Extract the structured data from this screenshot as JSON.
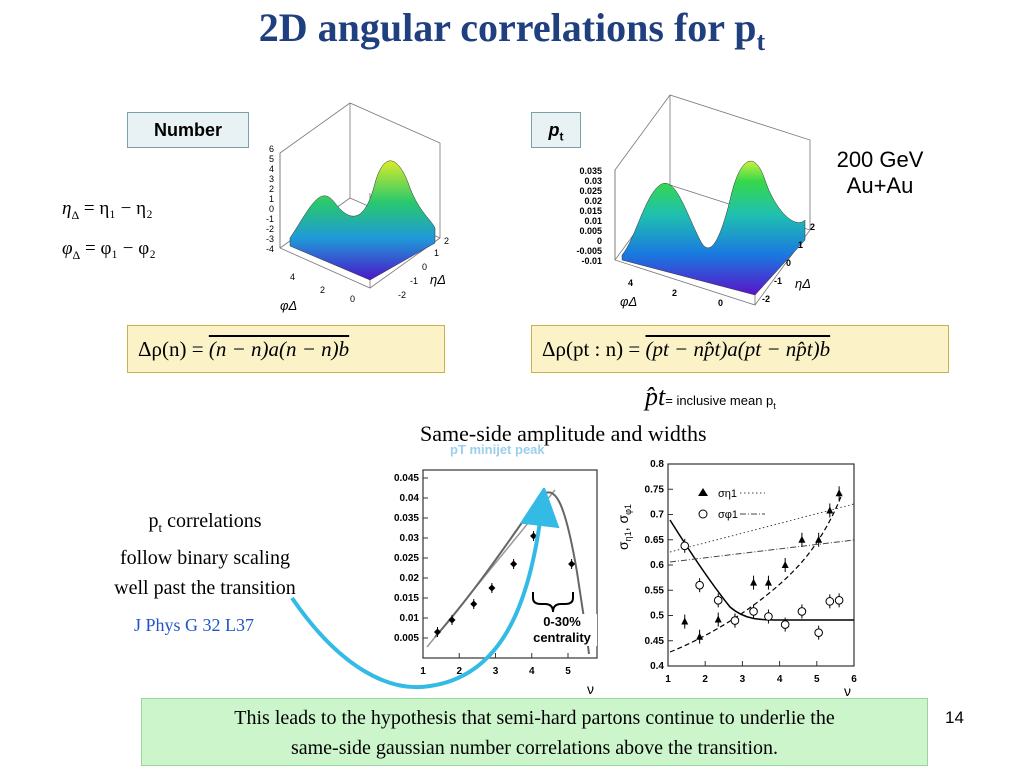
{
  "title": {
    "main": "2D angular correlations for p",
    "sub": "t"
  },
  "panels": {
    "number_label": "Number",
    "pt_label_main": "p",
    "pt_label_sub": "t"
  },
  "definitions": {
    "eta_lhs": "η",
    "eta_sub": "Δ",
    "eta_rhs": " = η₁ − η₂",
    "phi_lhs": "φ",
    "phi_sub": "Δ",
    "phi_rhs": " = φ₁ − φ₂"
  },
  "energy": {
    "line1": "200 GeV",
    "line2": "Au+Au"
  },
  "equations": {
    "number": {
      "lhs": "Δρ(n)",
      "eq": " = ",
      "rhs": "(n − n)a(n − n)b"
    },
    "pt": {
      "lhs": "Δρ(pt : n)",
      "eq": " = ",
      "rhs": "(pt − np̂t)a(pt − np̂t)b"
    }
  },
  "mean_pt": {
    "symbol": "p̂t",
    "text": "= inclusive mean p",
    "sub": "t"
  },
  "surface_axes": {
    "left": {
      "z_ticks": [
        "6",
        "5",
        "4",
        "3",
        "2",
        "1",
        "0",
        "-1",
        "-2",
        "-3",
        "-4"
      ],
      "phi_ticks": [
        "4",
        "2",
        "0"
      ],
      "eta_ticks": [
        "-2",
        "-1",
        "0",
        "1",
        "2"
      ],
      "phi_label": "φΔ",
      "eta_label": "ηΔ"
    },
    "right": {
      "z_ticks": [
        "0.035",
        "0.03",
        "0.025",
        "0.02",
        "0.015",
        "0.01",
        "0.005",
        "0",
        "-0.005",
        "-0.01"
      ],
      "phi_ticks": [
        "4",
        "2",
        "0"
      ],
      "eta_ticks": [
        "-2",
        "-1",
        "0",
        "1",
        "2"
      ],
      "phi_label": "φΔ",
      "eta_label": "ηΔ"
    }
  },
  "section_heading": "Same-side amplitude and widths",
  "left_text": {
    "line1_main": "p",
    "line1_sub": "t",
    "line1_rest": " correlations",
    "line2": "follow binary scaling",
    "line3": "well past the transition",
    "citation": "J Phys G 32 L37"
  },
  "minijet_label": "pT minijet peak",
  "centrality_label": {
    "line1": "0-30%",
    "line2": "centrality"
  },
  "note": {
    "line1": "This leads to the hypothesis that semi-hard partons continue to underlie the",
    "line2": "same-side gaussian number correlations above the transition."
  },
  "page_number": "14",
  "colors": {
    "title": "#1f3f7f",
    "arrow": "#33bbe6",
    "note_bg": "#ccf5cc",
    "eq_bg": "#fbf2c8",
    "label_bg": "#e8f2f5"
  },
  "chart_data": [
    {
      "type": "scatter",
      "x": [
        1.4,
        1.8,
        2.4,
        2.9,
        3.5,
        4.05,
        4.4,
        5.1
      ],
      "y": [
        0.0065,
        0.0095,
        0.0135,
        0.0175,
        0.0235,
        0.0305,
        0.0385,
        0.0235
      ],
      "xticks": [
        "1",
        "2",
        "3",
        "4",
        "5"
      ],
      "yticks": [
        "0.045",
        "0.04",
        "0.035",
        "0.03",
        "0.025",
        "0.02",
        "0.015",
        "0.01",
        "0.005"
      ],
      "xlabel": "ν",
      "xlim": [
        1,
        5.8
      ],
      "ylim": [
        0,
        0.047
      ]
    },
    {
      "type": "scatter",
      "xlabel": "ν",
      "xticks": [
        "1",
        "2",
        "3",
        "4",
        "5",
        "6"
      ],
      "yticks": [
        "0.8",
        "0.75",
        "0.7",
        "0.65",
        "0.6",
        "0.55",
        "0.5",
        "0.45",
        "0.4"
      ],
      "xlim": [
        1,
        6
      ],
      "ylim": [
        0.4,
        0.8
      ],
      "ylabel_main": "σ",
      "ylabel_sub1": "η1",
      "ylabel_sep": ", σ",
      "ylabel_sub2": "φ1",
      "series": [
        {
          "name": "ση1",
          "marker": "triangle",
          "x": [
            1.45,
            1.85,
            2.35,
            2.8,
            3.3,
            3.7,
            4.15,
            4.6,
            5.05,
            5.35,
            5.6
          ],
          "y": [
            0.488,
            0.458,
            0.492,
            0.49,
            0.565,
            0.565,
            0.6,
            0.65,
            0.65,
            0.708,
            0.742
          ]
        },
        {
          "name": "σφ1",
          "marker": "circle",
          "x": [
            1.45,
            1.85,
            2.35,
            2.8,
            3.3,
            3.7,
            4.15,
            4.6,
            5.05,
            5.35,
            5.6
          ],
          "y": [
            0.638,
            0.56,
            0.53,
            0.49,
            0.508,
            0.498,
            0.482,
            0.508,
            0.466,
            0.528,
            0.53
          ]
        }
      ]
    }
  ]
}
